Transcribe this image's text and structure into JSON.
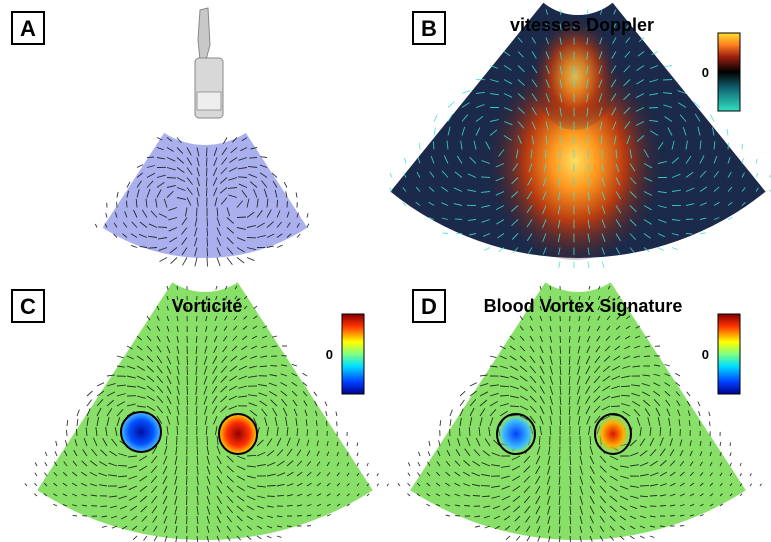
{
  "panels": [
    {
      "label": "A"
    },
    {
      "label": "B",
      "title": "vitesses Doppler",
      "colorbar_zero": "0"
    },
    {
      "label": "C",
      "title": "Vorticité",
      "colorbar_zero": "0"
    },
    {
      "label": "D",
      "title": "Blood Vortex Signature",
      "colorbar_zero": "0"
    }
  ]
}
